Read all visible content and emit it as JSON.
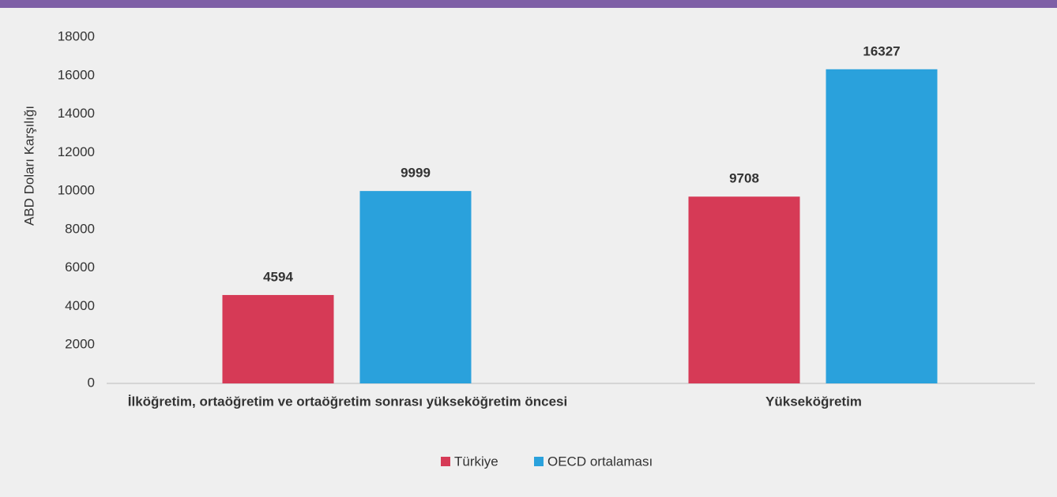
{
  "chart_data": {
    "type": "bar",
    "ylabel": "ABD Doları Karşılığı",
    "categories": [
      "İlköğretim, ortaöğretim ve ortaöğretim sonrası yükseköğretim öncesi",
      "Yükseköğretim"
    ],
    "series": [
      {
        "name": "Türkiye",
        "color": "#d63a56",
        "values": [
          4594,
          9708
        ]
      },
      {
        "name": "OECD ortalaması",
        "color": "#2aa1dc",
        "values": [
          9999,
          16327
        ]
      }
    ],
    "ylim": [
      0,
      18000
    ],
    "yticks": [
      0,
      2000,
      4000,
      6000,
      8000,
      10000,
      12000,
      14000,
      16000,
      18000
    ],
    "grid": false,
    "legend": "bottom"
  }
}
